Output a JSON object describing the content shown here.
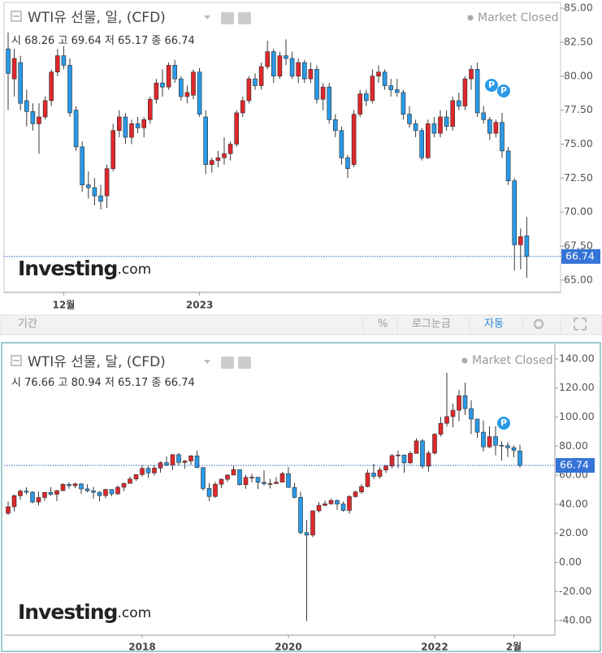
{
  "chart_data": [
    {
      "type": "candlestick",
      "title": "WTI유 선물, 일, (CFD)",
      "status": "Market Closed",
      "ohlc_labels": [
        "시",
        "고",
        "저",
        "종"
      ],
      "watermark": [
        "Investing",
        ".com"
      ],
      "event_marker_label": "P",
      "up_color": "#e0282c",
      "down_color": "#2a9ae8",
      "grid": false,
      "ylim": [
        64.1,
        85.42
      ],
      "yticks": [
        {
          "value": 65,
          "label": "65.00"
        },
        {
          "value": 67.5,
          "label": "67.50"
        },
        {
          "value": 70,
          "label": "70.00"
        },
        {
          "value": 72.5,
          "label": "72.50"
        },
        {
          "value": 75,
          "label": "75.00"
        },
        {
          "value": 77.5,
          "label": "77.50"
        },
        {
          "value": 80,
          "label": "80.00"
        },
        {
          "value": 82.5,
          "label": "82.50"
        },
        {
          "value": 85,
          "label": "85.00"
        }
      ],
      "xticks": [
        {
          "value": 9,
          "label": "12월"
        },
        {
          "value": 31,
          "label": "2023"
        }
      ],
      "ohlc": [
        [
          82.0,
          83.2,
          77.5,
          80.2
        ],
        [
          79.8,
          82.0,
          78.5,
          81.3
        ],
        [
          81.0,
          81.5,
          77.5,
          78.0
        ],
        [
          78.2,
          79.0,
          76.3,
          77.4
        ],
        [
          77.4,
          78.0,
          76.0,
          76.5
        ],
        [
          76.5,
          78.0,
          74.3,
          77.0
        ],
        [
          77.0,
          78.5,
          76.8,
          78.2
        ],
        [
          78.2,
          80.5,
          77.8,
          80.3
        ],
        [
          80.3,
          82.0,
          80.0,
          81.5
        ],
        [
          81.5,
          82.2,
          80.5,
          80.8
        ],
        [
          80.8,
          81.3,
          77.0,
          77.3
        ],
        [
          77.5,
          77.8,
          74.5,
          74.8
        ],
        [
          74.8,
          75.2,
          71.5,
          72.0
        ],
        [
          72.0,
          73.0,
          71.0,
          71.8
        ],
        [
          71.8,
          72.5,
          70.5,
          71.2
        ],
        [
          71.2,
          72.0,
          70.2,
          70.8
        ],
        [
          71.2,
          73.5,
          70.3,
          73.2
        ],
        [
          73.2,
          76.5,
          73.0,
          76.0
        ],
        [
          76.0,
          77.5,
          75.5,
          77.0
        ],
        [
          77.0,
          77.3,
          75.0,
          75.5
        ],
        [
          75.5,
          76.8,
          75.0,
          76.5
        ],
        [
          76.5,
          77.0,
          75.8,
          76.2
        ],
        [
          76.2,
          77.0,
          75.5,
          76.8
        ],
        [
          76.8,
          78.5,
          76.5,
          78.3
        ],
        [
          78.3,
          79.8,
          78.0,
          79.5
        ],
        [
          79.5,
          80.5,
          78.5,
          79.2
        ],
        [
          79.2,
          81.0,
          79.0,
          80.8
        ],
        [
          80.8,
          81.2,
          79.5,
          79.8
        ],
        [
          79.8,
          80.0,
          78.2,
          78.5
        ],
        [
          78.5,
          79.3,
          78.0,
          78.8
        ],
        [
          78.6,
          80.5,
          78.3,
          80.3
        ],
        [
          80.3,
          80.6,
          77.0,
          77.2
        ],
        [
          77.0,
          77.5,
          72.8,
          73.5
        ],
        [
          73.5,
          74.0,
          72.9,
          73.8
        ],
        [
          73.8,
          74.5,
          73.3,
          74.0
        ],
        [
          74.0,
          75.5,
          73.5,
          74.3
        ],
        [
          74.3,
          75.2,
          73.8,
          75.0
        ],
        [
          75.0,
          77.5,
          74.8,
          77.3
        ],
        [
          77.3,
          78.5,
          77.0,
          78.2
        ],
        [
          78.2,
          80.0,
          78.0,
          79.8
        ],
        [
          79.8,
          80.2,
          79.0,
          79.3
        ],
        [
          79.3,
          81.0,
          79.0,
          80.7
        ],
        [
          80.7,
          82.6,
          80.5,
          81.8
        ],
        [
          81.8,
          82.0,
          79.5,
          80.0
        ],
        [
          80.0,
          81.8,
          79.8,
          81.5
        ],
        [
          81.5,
          82.7,
          80.8,
          81.3
        ],
        [
          81.3,
          81.8,
          79.8,
          80.0
        ],
        [
          80.0,
          81.3,
          79.5,
          81.0
        ],
        [
          81.0,
          81.2,
          79.5,
          79.8
        ],
        [
          79.8,
          81.0,
          79.5,
          80.5
        ],
        [
          80.5,
          80.8,
          78.0,
          78.3
        ],
        [
          78.3,
          79.5,
          77.5,
          79.2
        ],
        [
          79.2,
          79.5,
          76.5,
          76.8
        ],
        [
          76.8,
          77.2,
          75.5,
          76.0
        ],
        [
          76.0,
          76.3,
          73.5,
          74.0
        ],
        [
          74.0,
          74.2,
          72.5,
          73.2
        ],
        [
          73.5,
          77.5,
          73.3,
          77.2
        ],
        [
          77.2,
          79.0,
          77.0,
          78.7
        ],
        [
          78.7,
          79.0,
          77.8,
          78.2
        ],
        [
          78.2,
          80.5,
          78.0,
          80.0
        ],
        [
          80.0,
          80.8,
          79.5,
          80.3
        ],
        [
          80.3,
          80.5,
          79.0,
          79.3
        ],
        [
          79.3,
          79.8,
          78.5,
          79.0
        ],
        [
          79.0,
          79.8,
          78.5,
          78.8
        ],
        [
          78.8,
          79.0,
          76.8,
          77.2
        ],
        [
          77.2,
          77.8,
          76.2,
          76.5
        ],
        [
          76.5,
          76.8,
          75.5,
          76.0
        ],
        [
          76.0,
          76.2,
          73.8,
          74.0
        ],
        [
          74.0,
          76.8,
          73.9,
          76.5
        ],
        [
          76.5,
          77.0,
          75.5,
          75.8
        ],
        [
          75.8,
          77.5,
          75.5,
          77.0
        ],
        [
          77.0,
          77.5,
          76.0,
          76.3
        ],
        [
          76.3,
          78.5,
          76.0,
          78.2
        ],
        [
          78.2,
          78.8,
          77.5,
          77.8
        ],
        [
          77.8,
          80.0,
          77.5,
          79.8
        ],
        [
          79.8,
          80.8,
          79.0,
          80.5
        ],
        [
          80.5,
          81.0,
          77.0,
          77.3
        ],
        [
          77.3,
          77.8,
          76.5,
          76.8
        ],
        [
          76.8,
          77.0,
          75.3,
          75.8
        ],
        [
          75.8,
          76.8,
          75.5,
          76.6
        ],
        [
          76.6,
          77.3,
          74.0,
          74.5
        ],
        [
          74.5,
          74.8,
          72.0,
          72.3
        ],
        [
          72.3,
          72.5,
          65.7,
          67.6
        ],
        [
          67.6,
          68.8,
          65.8,
          68.2
        ],
        [
          68.26,
          69.64,
          65.17,
          66.74
        ]
      ]
    },
    {
      "type": "candlestick",
      "title": "WTI유 선물, 달, (CFD)",
      "status": "Market Closed",
      "ohlc_labels": [
        "시",
        "고",
        "저",
        "종"
      ],
      "watermark": [
        "Investing",
        ".com"
      ],
      "event_marker_label": "P",
      "up_color": "#e0282c",
      "down_color": "#2a9ae8",
      "grid": false,
      "ylim": [
        -50,
        150
      ],
      "yticks": [
        {
          "value": -40,
          "label": "-40.00"
        },
        {
          "value": -20,
          "label": "-20.00"
        },
        {
          "value": 0,
          "label": "0.00"
        },
        {
          "value": 20,
          "label": "20.00"
        },
        {
          "value": 40,
          "label": "40.00"
        },
        {
          "value": 60,
          "label": "60.00"
        },
        {
          "value": 80,
          "label": "80.00"
        },
        {
          "value": 100,
          "label": "100.00"
        },
        {
          "value": 120,
          "label": "120.00"
        },
        {
          "value": 140,
          "label": "140.00"
        }
      ],
      "xticks": [
        {
          "value": 22,
          "label": "2018"
        },
        {
          "value": 46,
          "label": "2020"
        },
        {
          "value": 70,
          "label": "2022"
        },
        {
          "value": 83,
          "label": "2월"
        }
      ],
      "ohlc": [
        [
          33.8,
          41.9,
          32.6,
          38.3
        ],
        [
          38.3,
          46.8,
          35.2,
          45.9
        ],
        [
          45.9,
          50.2,
          43.0,
          49.1
        ],
        [
          49.1,
          51.7,
          46.7,
          48.3
        ],
        [
          48.3,
          49.0,
          40.6,
          41.6
        ],
        [
          41.6,
          48.8,
          39.2,
          44.7
        ],
        [
          44.7,
          48.3,
          42.5,
          48.2
        ],
        [
          48.2,
          51.9,
          45.9,
          46.9
        ],
        [
          46.9,
          49.9,
          42.2,
          49.4
        ],
        [
          49.4,
          54.5,
          49.0,
          53.7
        ],
        [
          53.7,
          55.2,
          50.7,
          52.8
        ],
        [
          52.8,
          54.9,
          51.2,
          54.0
        ],
        [
          54.0,
          54.6,
          47.1,
          50.6
        ],
        [
          50.6,
          53.8,
          48.2,
          49.3
        ],
        [
          49.3,
          52.0,
          43.8,
          48.3
        ],
        [
          48.3,
          49.0,
          42.1,
          46.0
        ],
        [
          46.0,
          50.4,
          44.2,
          50.2
        ],
        [
          50.2,
          50.2,
          45.6,
          47.2
        ],
        [
          47.2,
          52.9,
          46.5,
          51.7
        ],
        [
          51.7,
          54.8,
          49.1,
          54.4
        ],
        [
          54.4,
          59.1,
          54.3,
          57.4
        ],
        [
          57.4,
          60.5,
          56.1,
          60.4
        ],
        [
          60.4,
          66.7,
          59.1,
          64.7
        ],
        [
          64.7,
          66.3,
          58.1,
          61.6
        ],
        [
          61.6,
          66.6,
          59.9,
          64.9
        ],
        [
          64.9,
          69.6,
          61.8,
          68.6
        ],
        [
          68.6,
          72.9,
          66.3,
          67.0
        ],
        [
          67.0,
          74.5,
          63.6,
          74.1
        ],
        [
          74.1,
          75.3,
          66.9,
          68.8
        ],
        [
          68.8,
          70.4,
          64.4,
          69.8
        ],
        [
          69.8,
          73.9,
          67.1,
          73.3
        ],
        [
          73.3,
          76.9,
          64.9,
          65.3
        ],
        [
          65.3,
          65.4,
          49.4,
          50.9
        ],
        [
          50.9,
          54.6,
          42.4,
          45.4
        ],
        [
          45.4,
          55.4,
          44.4,
          53.8
        ],
        [
          53.8,
          57.8,
          51.2,
          57.2
        ],
        [
          57.2,
          60.7,
          55.3,
          60.1
        ],
        [
          60.1,
          66.6,
          60.0,
          63.9
        ],
        [
          63.9,
          63.9,
          52.9,
          53.5
        ],
        [
          53.5,
          60.3,
          50.6,
          58.5
        ],
        [
          58.5,
          60.9,
          55.1,
          58.6
        ],
        [
          58.6,
          58.8,
          50.5,
          55.1
        ],
        [
          55.1,
          63.4,
          52.9,
          54.1
        ],
        [
          54.1,
          57.5,
          50.9,
          54.2
        ],
        [
          54.2,
          58.7,
          54.0,
          55.2
        ],
        [
          55.2,
          62.3,
          55.0,
          61.1
        ],
        [
          61.1,
          65.6,
          51.3,
          51.6
        ],
        [
          51.6,
          54.7,
          44.0,
          44.8
        ],
        [
          44.8,
          48.7,
          19.3,
          20.5
        ],
        [
          20.5,
          29.1,
          -40.3,
          18.8
        ],
        [
          18.8,
          35.6,
          17.3,
          35.5
        ],
        [
          35.5,
          41.6,
          34.4,
          39.3
        ],
        [
          39.3,
          42.5,
          38.7,
          40.3
        ],
        [
          40.3,
          43.8,
          39.8,
          42.6
        ],
        [
          42.6,
          43.4,
          36.1,
          40.2
        ],
        [
          40.2,
          41.8,
          34.9,
          35.8
        ],
        [
          35.8,
          46.3,
          33.6,
          45.3
        ],
        [
          45.3,
          49.4,
          44.6,
          48.5
        ],
        [
          48.5,
          53.9,
          47.2,
          52.2
        ],
        [
          52.2,
          63.8,
          51.6,
          61.5
        ],
        [
          61.5,
          67.9,
          57.3,
          59.2
        ],
        [
          59.2,
          65.5,
          57.6,
          63.6
        ],
        [
          63.6,
          67.0,
          61.6,
          66.3
        ],
        [
          66.3,
          74.5,
          64.8,
          73.5
        ],
        [
          73.5,
          76.9,
          65.0,
          73.9
        ],
        [
          73.9,
          74.0,
          61.7,
          68.5
        ],
        [
          68.5,
          76.7,
          67.6,
          75.0
        ],
        [
          75.0,
          85.4,
          74.9,
          83.6
        ],
        [
          83.6,
          84.9,
          64.4,
          66.2
        ],
        [
          66.2,
          76.8,
          62.4,
          75.2
        ],
        [
          75.2,
          88.8,
          74.3,
          88.2
        ],
        [
          88.2,
          100.0,
          86.6,
          95.7
        ],
        [
          95.7,
          130.5,
          93.5,
          100.3
        ],
        [
          100.3,
          109.2,
          92.9,
          104.7
        ],
        [
          104.7,
          118.7,
          97.2,
          114.7
        ],
        [
          114.7,
          123.7,
          101.5,
          105.8
        ],
        [
          105.8,
          111.5,
          88.2,
          98.6
        ],
        [
          98.6,
          98.8,
          85.7,
          89.6
        ],
        [
          89.6,
          97.7,
          76.3,
          79.5
        ],
        [
          79.5,
          93.6,
          78.6,
          86.5
        ],
        [
          86.5,
          93.7,
          73.6,
          80.6
        ],
        [
          80.6,
          83.3,
          70.1,
          80.3
        ],
        [
          80.3,
          82.7,
          72.5,
          78.9
        ],
        [
          78.9,
          80.6,
          72.3,
          77.1
        ],
        [
          76.66,
          80.94,
          65.17,
          66.74
        ]
      ]
    }
  ],
  "toolbar": {
    "period": "기간",
    "percent": "%",
    "log": "로그눈금",
    "auto": "자동"
  }
}
